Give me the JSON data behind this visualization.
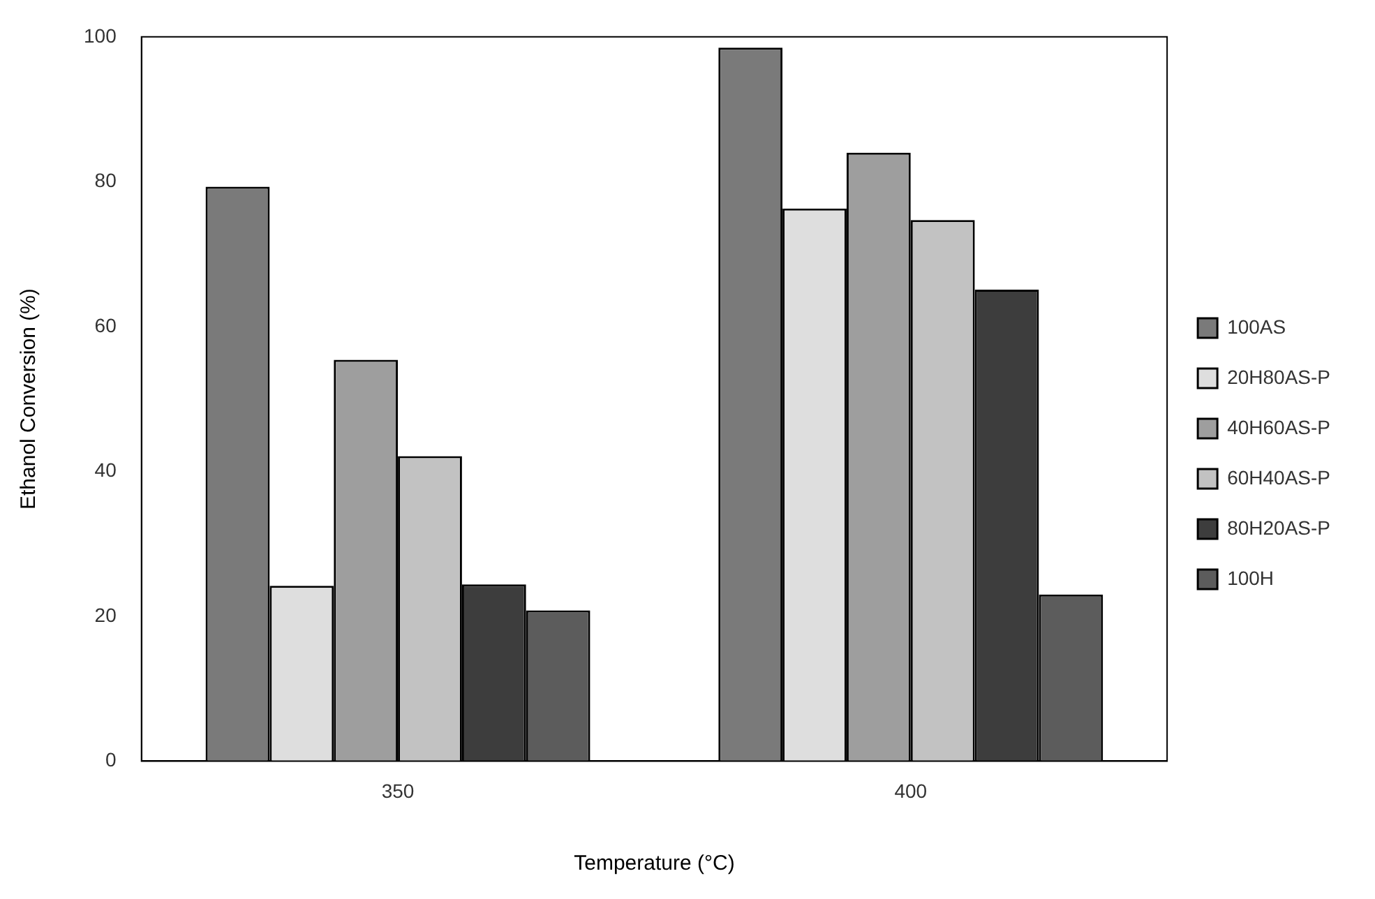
{
  "chart_data": {
    "type": "bar",
    "xlabel": "Temperature (°C)",
    "ylabel": "Ethanol Conversion (%)",
    "categories": [
      "350",
      "400"
    ],
    "series": [
      {
        "name": "100AS",
        "color": "#7a7a7a",
        "values": [
          79.3,
          98.5
        ]
      },
      {
        "name": "20H80AS-P",
        "color": "#dedede",
        "values": [
          24.2,
          76.3
        ]
      },
      {
        "name": "40H60AS-P",
        "color": "#9e9e9e",
        "values": [
          55.4,
          84.0
        ]
      },
      {
        "name": "60H40AS-P",
        "color": "#c2c2c2",
        "values": [
          42.1,
          74.7
        ]
      },
      {
        "name": "80H20AS-P",
        "color": "#3d3d3d",
        "values": [
          24.4,
          65.1
        ]
      },
      {
        "name": "100H",
        "color": "#5c5c5c",
        "values": [
          20.8,
          23.0
        ]
      }
    ],
    "ylim": [
      0,
      100
    ],
    "yticks": [
      0,
      20,
      40,
      60,
      80,
      100
    ],
    "grid": false,
    "legend": "right"
  }
}
